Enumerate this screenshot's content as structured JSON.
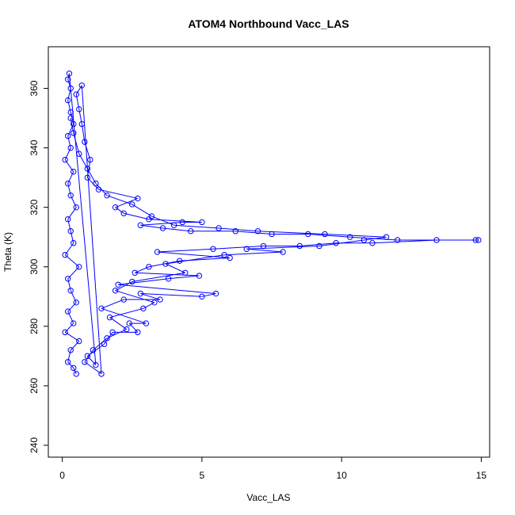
{
  "chart_data": {
    "type": "scatter",
    "title": "ATOM4 Northbound Vacc_LAS",
    "xlabel": "Vacc_LAS",
    "ylabel": "Theta (K)",
    "xlim": [
      -0.5,
      15.3
    ],
    "ylim": [
      236,
      374
    ],
    "xticks": [
      "0",
      "5",
      "10",
      "15"
    ],
    "yticks": [
      "240",
      "260",
      "280",
      "300",
      "320",
      "340",
      "360"
    ],
    "marker": "open-circle",
    "connected": true,
    "grid": false,
    "color": "#0000FF",
    "series": [
      {
        "values_summary": "dense cluster near Vacc_LAS 0-1 across Theta 264-365; horizontal streaks extend to larger Vacc_LAS at ~309 K",
        "points": [
          [
            0.5,
            264
          ],
          [
            0.4,
            266
          ],
          [
            0.2,
            268
          ],
          [
            0.3,
            272
          ],
          [
            0.6,
            275
          ],
          [
            0.1,
            278
          ],
          [
            0.4,
            281
          ],
          [
            0.2,
            285
          ],
          [
            0.5,
            288
          ],
          [
            0.3,
            292
          ],
          [
            0.2,
            296
          ],
          [
            0.6,
            300
          ],
          [
            0.1,
            304
          ],
          [
            0.4,
            308
          ],
          [
            0.3,
            312
          ],
          [
            0.2,
            316
          ],
          [
            0.5,
            320
          ],
          [
            0.3,
            324
          ],
          [
            0.2,
            328
          ],
          [
            0.4,
            332
          ],
          [
            0.1,
            336
          ],
          [
            0.3,
            340
          ],
          [
            0.2,
            344
          ],
          [
            0.4,
            348
          ],
          [
            0.3,
            352
          ],
          [
            0.2,
            356
          ],
          [
            0.3,
            360
          ],
          [
            0.2,
            363
          ],
          [
            0.25,
            365
          ],
          [
            1.2,
            267
          ],
          [
            0.9,
            270
          ],
          [
            1.5,
            274
          ],
          [
            1.8,
            278
          ],
          [
            2.7,
            278
          ],
          [
            2.4,
            281
          ],
          [
            3.0,
            281
          ],
          [
            1.4,
            286
          ],
          [
            2.2,
            289
          ],
          [
            3.5,
            289
          ],
          [
            2.8,
            291
          ],
          [
            5.0,
            290
          ],
          [
            5.5,
            291
          ],
          [
            2.0,
            294
          ],
          [
            3.8,
            296
          ],
          [
            4.9,
            297
          ],
          [
            2.6,
            298
          ],
          [
            3.1,
            300
          ],
          [
            4.2,
            302
          ],
          [
            6.0,
            303
          ],
          [
            3.4,
            305
          ],
          [
            5.4,
            306
          ],
          [
            7.2,
            307
          ],
          [
            8.5,
            307
          ],
          [
            9.8,
            308
          ],
          [
            11.1,
            308
          ],
          [
            13.4,
            309
          ],
          [
            14.8,
            309
          ],
          [
            14.9,
            309
          ],
          [
            12.0,
            309
          ],
          [
            10.3,
            310
          ],
          [
            8.8,
            311
          ],
          [
            7.5,
            311
          ],
          [
            6.2,
            312
          ],
          [
            4.6,
            312
          ],
          [
            3.6,
            313
          ],
          [
            2.8,
            314
          ],
          [
            4.3,
            315
          ],
          [
            5.0,
            315
          ],
          [
            3.1,
            316
          ],
          [
            2.2,
            318
          ],
          [
            1.9,
            320
          ],
          [
            2.7,
            323
          ],
          [
            1.3,
            326
          ],
          [
            0.9,
            330
          ],
          [
            1.0,
            336
          ],
          [
            0.8,
            342
          ],
          [
            0.7,
            348
          ],
          [
            0.6,
            353
          ],
          [
            0.5,
            358
          ],
          [
            0.7,
            361
          ],
          [
            1.4,
            264
          ],
          [
            0.8,
            268
          ],
          [
            1.1,
            272
          ],
          [
            1.6,
            276
          ],
          [
            2.3,
            279
          ],
          [
            1.7,
            283
          ],
          [
            2.9,
            286
          ],
          [
            3.3,
            288
          ],
          [
            1.9,
            292
          ],
          [
            2.5,
            295
          ],
          [
            4.4,
            298
          ],
          [
            3.7,
            301
          ],
          [
            5.8,
            304
          ],
          [
            7.9,
            305
          ],
          [
            6.6,
            306
          ],
          [
            9.2,
            307
          ],
          [
            10.8,
            309
          ],
          [
            11.6,
            310
          ],
          [
            9.4,
            311
          ],
          [
            7.0,
            312
          ],
          [
            5.6,
            313
          ],
          [
            4.0,
            314
          ],
          [
            3.2,
            317
          ],
          [
            2.5,
            321
          ],
          [
            1.6,
            324
          ],
          [
            1.2,
            328
          ],
          [
            0.9,
            333
          ],
          [
            0.6,
            338
          ],
          [
            0.4,
            345
          ],
          [
            0.3,
            350
          ]
        ]
      }
    ]
  }
}
